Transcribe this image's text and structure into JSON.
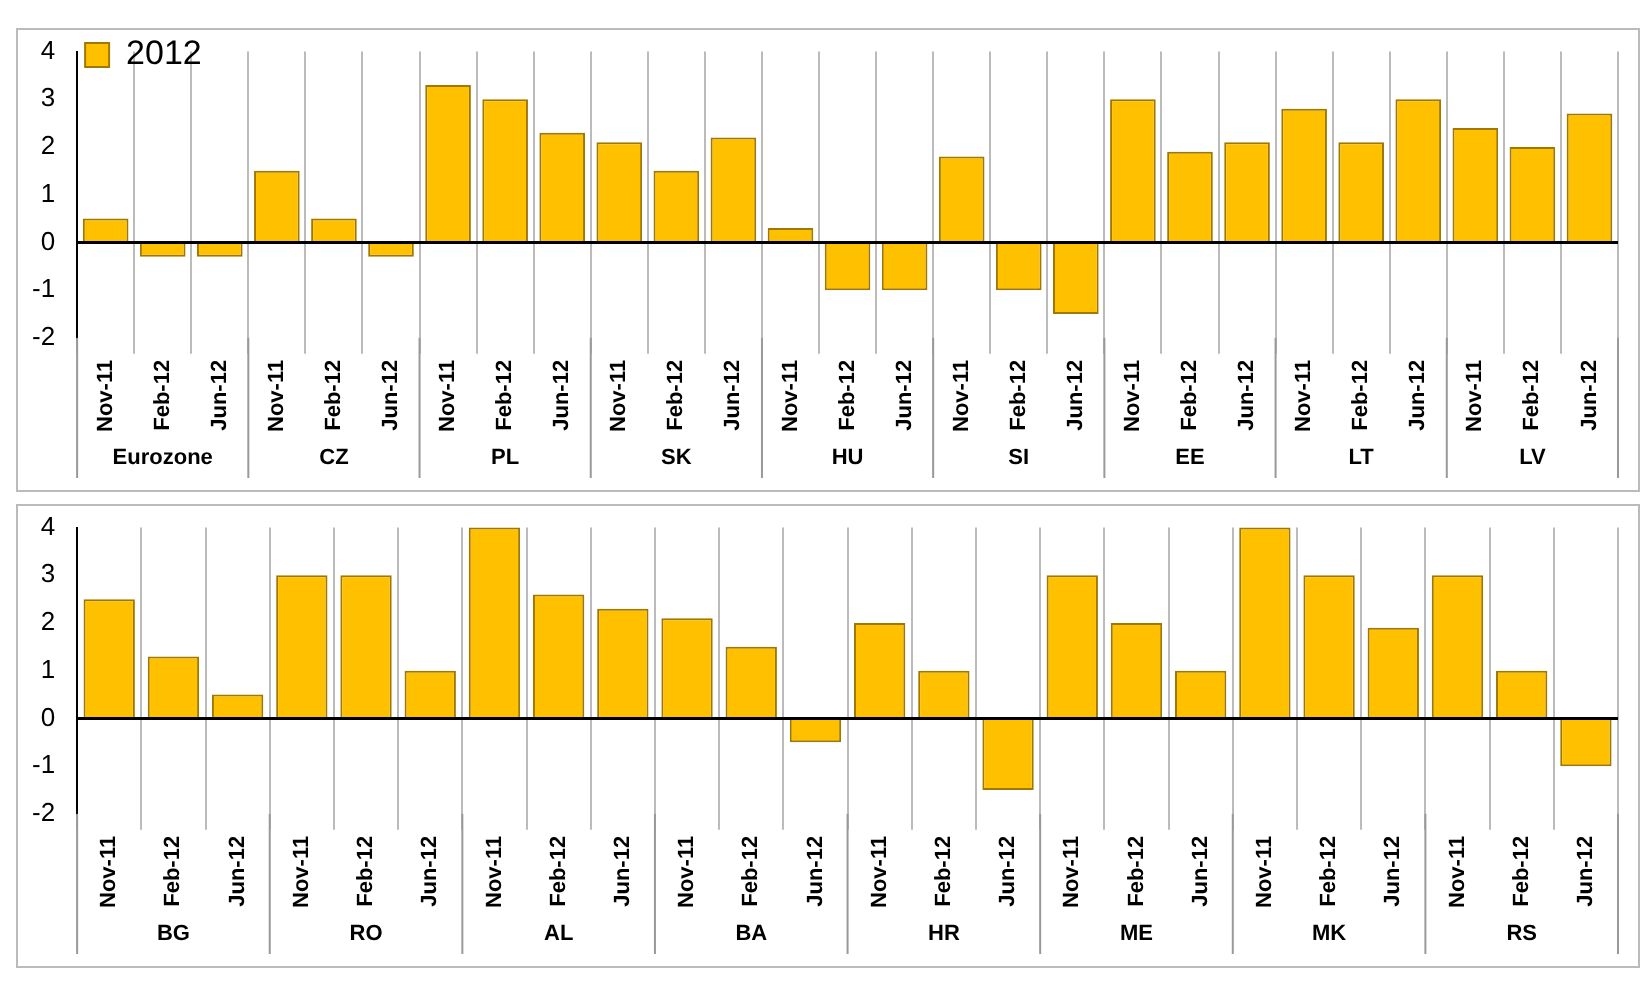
{
  "chart_data": [
    {
      "type": "bar",
      "categories": [
        "Nov-11",
        "Feb-12",
        "Jun-12",
        "Nov-11",
        "Feb-12",
        "Jun-12",
        "Nov-11",
        "Feb-12",
        "Jun-12",
        "Nov-11",
        "Feb-12",
        "Jun-12",
        "Nov-11",
        "Feb-12",
        "Jun-12",
        "Nov-11",
        "Feb-12",
        "Jun-12",
        "Nov-11",
        "Feb-12",
        "Jun-12",
        "Nov-11",
        "Feb-12",
        "Jun-12",
        "Nov-11",
        "Feb-12",
        "Jun-12"
      ],
      "series": [
        {
          "name": "2012",
          "color": "#ffc000",
          "values": [
            0.5,
            -0.3,
            -0.3,
            1.5,
            0.5,
            -0.3,
            3.3,
            3.0,
            2.3,
            2.1,
            1.5,
            2.2,
            0.3,
            -1.0,
            -1.0,
            1.8,
            -1.0,
            -1.5,
            3.0,
            1.9,
            2.1,
            2.8,
            2.1,
            3.0,
            2.4,
            2.0,
            2.7
          ]
        }
      ],
      "annotations": [
        "Eurozone",
        "CZ",
        "PL",
        "SK",
        "HU",
        "SI",
        "EE",
        "LT",
        "LV"
      ],
      "ylim": [
        -2,
        4
      ],
      "yticks": [
        -2,
        -1,
        0,
        1,
        2,
        3,
        4
      ],
      "grid": "x",
      "legend": "top left"
    },
    {
      "type": "bar",
      "categories": [
        "Nov-11",
        "Feb-12",
        "Jun-12",
        "Nov-11",
        "Feb-12",
        "Jun-12",
        "Nov-11",
        "Feb-12",
        "Jun-12",
        "Nov-11",
        "Feb-12",
        "Jun-12",
        "Nov-11",
        "Feb-12",
        "Jun-12",
        "Nov-11",
        "Feb-12",
        "Jun-12",
        "Nov-11",
        "Feb-12",
        "Jun-12",
        "Nov-11",
        "Feb-12",
        "Jun-12"
      ],
      "series": [
        {
          "color": "#ffc000",
          "values": [
            2.5,
            1.3,
            0.5,
            3.0,
            3.0,
            1.0,
            4.0,
            2.6,
            2.3,
            2.1,
            1.5,
            -0.5,
            2.0,
            1.0,
            -1.5,
            3.0,
            2.0,
            1.0,
            4.0,
            3.0,
            1.9,
            3.0,
            1.0,
            -1.0
          ]
        }
      ],
      "annotations": [
        "BG",
        "RO",
        "AL",
        "BA",
        "HR",
        "ME",
        "MK",
        "RS"
      ],
      "ylim": [
        -2,
        4
      ],
      "yticks": [
        -2,
        -1,
        0,
        1,
        2,
        3,
        4
      ],
      "grid": "x"
    }
  ]
}
